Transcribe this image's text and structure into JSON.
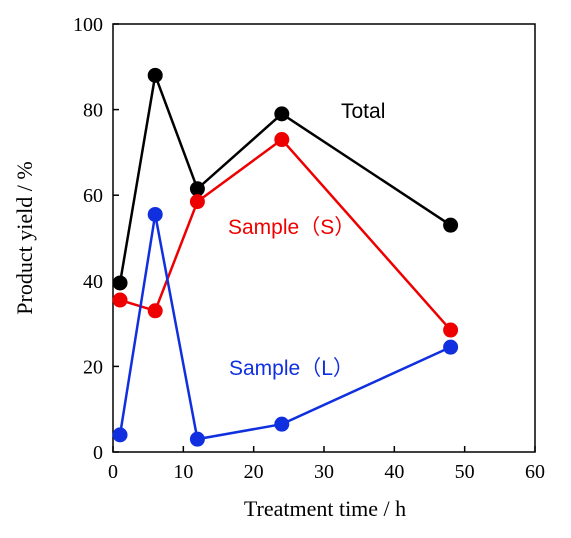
{
  "chart_data": {
    "type": "line",
    "xlabel": "Treatment time / h",
    "ylabel": "Product yield / %",
    "xlim": [
      0,
      60
    ],
    "ylim": [
      0,
      100
    ],
    "xticks": [
      0,
      10,
      20,
      30,
      40,
      50,
      60
    ],
    "yticks": [
      0,
      20,
      40,
      60,
      80,
      100
    ],
    "xtick_labels": [
      "0",
      "10",
      "20",
      "30",
      "40",
      "50",
      "60"
    ],
    "ytick_labels": [
      "0",
      "20",
      "40",
      "60",
      "80",
      "100"
    ],
    "grid": false,
    "x": [
      1,
      6,
      12,
      24,
      48
    ],
    "series": [
      {
        "name": "Total",
        "color": "#000000",
        "values": [
          39.5,
          88,
          61.5,
          79,
          53
        ]
      },
      {
        "name": "Sample（S）",
        "color": "#ee0000",
        "values": [
          35.5,
          33,
          58.5,
          73,
          28.5
        ]
      },
      {
        "name": "Sample（L）",
        "color": "#1030e0",
        "values": [
          4,
          55.5,
          3,
          6.5,
          24.5
        ]
      }
    ]
  }
}
